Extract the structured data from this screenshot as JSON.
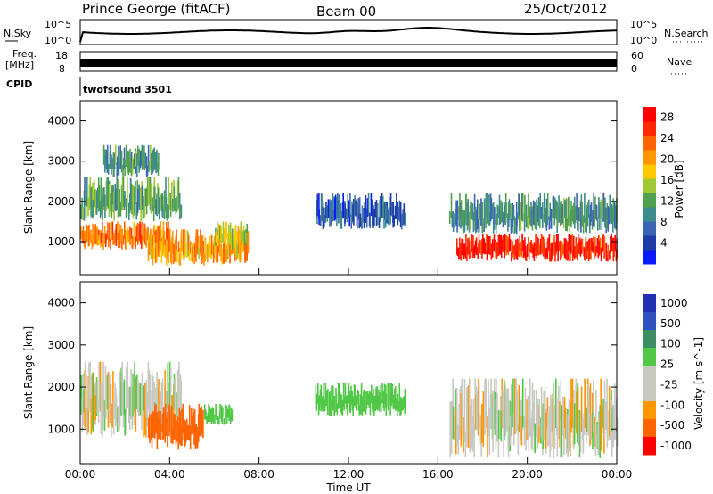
{
  "header": {
    "station": "Prince George (fitACF)",
    "beam": "Beam 00",
    "date": "25/Oct/2012"
  },
  "panels": {
    "nsky_label": "N.Sky",
    "nsky_ticks": [
      "10^5",
      "10^0"
    ],
    "nsearch_label": "N.Search",
    "nsearch_ticks": [
      "10^5",
      "10^0"
    ],
    "freq_label_1": "Freq.",
    "freq_label_2": "[MHz]",
    "freq_ticks": [
      "18",
      "8"
    ],
    "nave_label": "Nave",
    "nave_ticks": [
      "60",
      "0"
    ],
    "cpid_label": "CPID",
    "cpid_value": "twofsound 3501"
  },
  "colors": {
    "power_scale": [
      "#0a1aff",
      "#1e3ca8",
      "#3c64b4",
      "#3c8c8c",
      "#50a050",
      "#a0c832",
      "#ffc800",
      "#ff9600",
      "#ff6400",
      "#ff2800",
      "#ff0000"
    ],
    "velocity_scale": [
      "#2030b0",
      "#3050c0",
      "#3c8c64",
      "#50c846",
      "#c8c8c0",
      "#c8c8c0",
      "#ff9600",
      "#ff6400",
      "#ff0000"
    ]
  },
  "chart_data": [
    {
      "type": "heatmap",
      "name": "Power",
      "ylabel": "Slant Range [km]",
      "ylim": [
        180,
        4500
      ],
      "yticks": [
        "1000",
        "2000",
        "3000",
        "4000"
      ],
      "colorbar_label": "Power [dB]",
      "colorbar_ticks": [
        "4",
        "8",
        "12",
        "16",
        "20",
        "24",
        "28"
      ],
      "colorbar_range": [
        0,
        30
      ],
      "regions": [
        {
          "t": [
            0.0,
            4.0
          ],
          "r": [
            800,
            1500
          ],
          "level": 22
        },
        {
          "t": [
            0.0,
            4.5
          ],
          "r": [
            1500,
            2600
          ],
          "level": 12
        },
        {
          "t": [
            1.0,
            3.5
          ],
          "r": [
            2600,
            3400
          ],
          "level": 10
        },
        {
          "t": [
            3.0,
            7.5
          ],
          "r": [
            400,
            1300
          ],
          "level": 20
        },
        {
          "t": [
            6.0,
            7.5
          ],
          "r": [
            800,
            1500
          ],
          "level": 16
        },
        {
          "t": [
            10.5,
            14.5
          ],
          "r": [
            1300,
            2200
          ],
          "level": 6
        },
        {
          "t": [
            16.8,
            24.0
          ],
          "r": [
            500,
            1200
          ],
          "level": 27
        },
        {
          "t": [
            16.5,
            24.0
          ],
          "r": [
            1200,
            2200
          ],
          "level": 10
        }
      ]
    },
    {
      "type": "heatmap",
      "name": "Velocity",
      "ylabel": "Slant Range [km]",
      "ylim": [
        180,
        4500
      ],
      "yticks": [
        "1000",
        "2000",
        "3000",
        "4000"
      ],
      "xlabel": "Time UT",
      "xticks": [
        "00:00",
        "04:00",
        "08:00",
        "12:00",
        "16:00",
        "20:00",
        "00:00"
      ],
      "xlim": [
        0,
        24
      ],
      "colorbar_label": "Velocity [m s^-1]",
      "colorbar_ticks": [
        "1000",
        "500",
        "100",
        "25",
        "-25",
        "-100",
        "-500",
        "-1000"
      ],
      "regions": [
        {
          "t": [
            0.0,
            4.5
          ],
          "r": [
            800,
            2600
          ],
          "velocity": 0
        },
        {
          "t": [
            3.0,
            5.5
          ],
          "r": [
            500,
            1600
          ],
          "velocity": -200
        },
        {
          "t": [
            5.5,
            6.8
          ],
          "r": [
            1100,
            1600
          ],
          "velocity": 200
        },
        {
          "t": [
            10.5,
            14.5
          ],
          "r": [
            1300,
            2100
          ],
          "velocity": 200
        },
        {
          "t": [
            16.5,
            24.0
          ],
          "r": [
            300,
            2200
          ],
          "velocity": 0
        }
      ]
    }
  ]
}
